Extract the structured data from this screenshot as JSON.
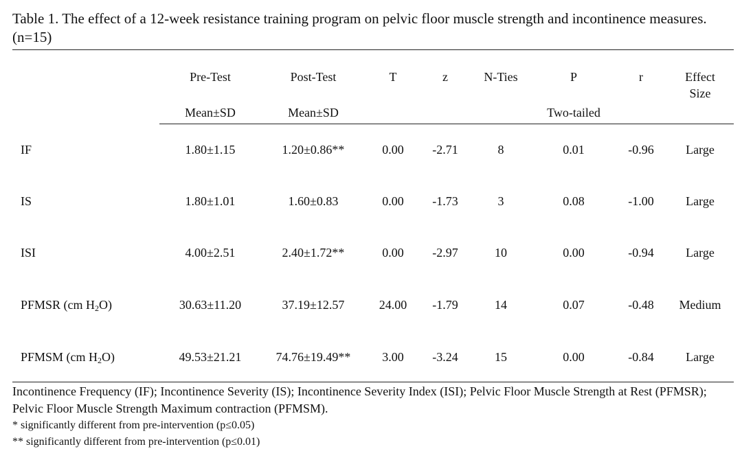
{
  "caption": "Table 1. The effect of a 12-week resistance training program on pelvic floor muscle strength and incontinence measures. (n=15)",
  "headers": {
    "pre_test": "Pre-Test",
    "post_test": "Post-Test",
    "t": "T",
    "z": "z",
    "n_ties": "N-Ties",
    "p": "P",
    "r": "r",
    "effect_size_1": "Effect",
    "effect_size_2": "Size",
    "pre_sub": "Mean±SD",
    "post_sub": "Mean±SD",
    "p_sub": "Two-tailed"
  },
  "rows": [
    {
      "label": "IF",
      "pre": "1.80±1.15",
      "post": "1.20±0.86**",
      "t": "0.00",
      "z": "-2.71",
      "nties": "8",
      "p": "0.01",
      "r": "-0.96",
      "effect": "Large"
    },
    {
      "label": "IS",
      "pre": "1.80±1.01",
      "post": "1.60±0.83",
      "t": "0.00",
      "z": "-1.73",
      "nties": "3",
      "p": "0.08",
      "r": "-1.00",
      "effect": "Large"
    },
    {
      "label": "ISI",
      "pre": "4.00±2.51",
      "post": "2.40±1.72**",
      "t": "0.00",
      "z": "-2.97",
      "nties": "10",
      "p": "0.00",
      "r": "-0.94",
      "effect": "Large"
    },
    {
      "label_main": "PFMSR (cm H",
      "label_sub": "2",
      "label_end": "O)",
      "pre": "30.63±11.20",
      "post": "37.19±12.57",
      "t": "24.00",
      "z": "-1.79",
      "nties": "14",
      "p": "0.07",
      "r": "-0.48",
      "effect": "Medium"
    },
    {
      "label_main": "PFMSM (cm H",
      "label_sub": "2",
      "label_end": "O)",
      "pre": "49.53±21.21",
      "post": "74.76±19.49**",
      "t": "3.00",
      "z": "-3.24",
      "nties": "15",
      "p": "0.00",
      "r": "-0.84",
      "effect": "Large"
    }
  ],
  "notes": {
    "abbreviations": "Incontinence Frequency (IF); Incontinence Severity (IS); Incontinence Severity Index (ISI); Pelvic Floor Muscle Strength at Rest (PFMSR); Pelvic Floor Muscle Strength Maximum contraction (PFMSM).",
    "footnote_1": "* significantly different from pre-intervention (p≤0.05)",
    "footnote_2": "** significantly different from pre-intervention (p≤0.01)"
  }
}
